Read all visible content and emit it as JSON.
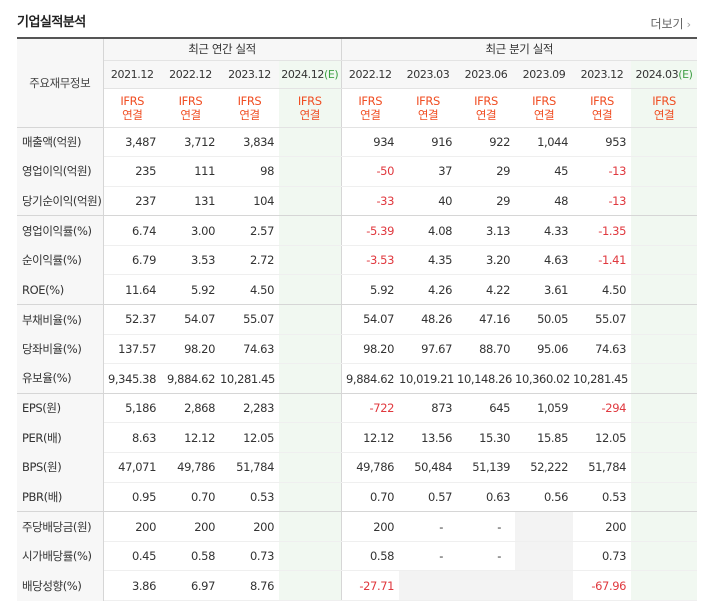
{
  "section_title": "기업실적분석",
  "more_label": "더보기",
  "header": {
    "row_label": "주요재무정보",
    "annual_group": "최근 연간 실적",
    "quarter_group": "최근 분기 실적",
    "annual_periods": [
      "2021.12",
      "2022.12",
      "2023.12",
      "2024.12(E)"
    ],
    "quarter_periods": [
      "2022.12",
      "2023.03",
      "2023.06",
      "2023.09",
      "2023.12",
      "2024.03(E)"
    ],
    "ifrs_line1": "IFRS",
    "ifrs_line2": "연결"
  },
  "rows": [
    {
      "label": "매출액(억원)",
      "annual": [
        "3,487",
        "3,712",
        "3,834",
        ""
      ],
      "quarter": [
        "934",
        "916",
        "922",
        "1,044",
        "953",
        ""
      ]
    },
    {
      "label": "영업이익(억원)",
      "annual": [
        "235",
        "111",
        "98",
        ""
      ],
      "quarter": [
        "-50",
        "37",
        "29",
        "45",
        "-13",
        ""
      ]
    },
    {
      "label": "당기순이익(억원)",
      "annual": [
        "237",
        "131",
        "104",
        ""
      ],
      "quarter": [
        "-33",
        "40",
        "29",
        "48",
        "-13",
        ""
      ]
    },
    {
      "label": "영업이익률(%)",
      "annual": [
        "6.74",
        "3.00",
        "2.57",
        ""
      ],
      "quarter": [
        "-5.39",
        "4.08",
        "3.13",
        "4.33",
        "-1.35",
        ""
      ]
    },
    {
      "label": "순이익률(%)",
      "annual": [
        "6.79",
        "3.53",
        "2.72",
        ""
      ],
      "quarter": [
        "-3.53",
        "4.35",
        "3.20",
        "4.63",
        "-1.41",
        ""
      ]
    },
    {
      "label": "ROE(%)",
      "annual": [
        "11.64",
        "5.92",
        "4.50",
        ""
      ],
      "quarter": [
        "5.92",
        "4.26",
        "4.22",
        "3.61",
        "4.50",
        ""
      ]
    },
    {
      "label": "부채비율(%)",
      "annual": [
        "52.37",
        "54.07",
        "55.07",
        ""
      ],
      "quarter": [
        "54.07",
        "48.26",
        "47.16",
        "50.05",
        "55.07",
        ""
      ]
    },
    {
      "label": "당좌비율(%)",
      "annual": [
        "137.57",
        "98.20",
        "74.63",
        ""
      ],
      "quarter": [
        "98.20",
        "97.67",
        "88.70",
        "95.06",
        "74.63",
        ""
      ]
    },
    {
      "label": "유보율(%)",
      "annual": [
        "9,345.38",
        "9,884.62",
        "10,281.45",
        ""
      ],
      "quarter": [
        "9,884.62",
        "10,019.21",
        "10,148.26",
        "10,360.02",
        "10,281.45",
        ""
      ]
    },
    {
      "label": "EPS(원)",
      "annual": [
        "5,186",
        "2,868",
        "2,283",
        ""
      ],
      "quarter": [
        "-722",
        "873",
        "645",
        "1,059",
        "-294",
        ""
      ]
    },
    {
      "label": "PER(배)",
      "annual": [
        "8.63",
        "12.12",
        "12.05",
        ""
      ],
      "quarter": [
        "12.12",
        "13.56",
        "15.30",
        "15.85",
        "12.05",
        ""
      ]
    },
    {
      "label": "BPS(원)",
      "annual": [
        "47,071",
        "49,786",
        "51,784",
        ""
      ],
      "quarter": [
        "49,786",
        "50,484",
        "51,139",
        "52,222",
        "51,784",
        ""
      ]
    },
    {
      "label": "PBR(배)",
      "annual": [
        "0.95",
        "0.70",
        "0.53",
        ""
      ],
      "quarter": [
        "0.70",
        "0.57",
        "0.63",
        "0.56",
        "0.53",
        ""
      ]
    },
    {
      "label": "주당배당금(원)",
      "annual": [
        "200",
        "200",
        "200",
        ""
      ],
      "quarter": [
        "200",
        "-",
        "-",
        "",
        "200",
        ""
      ]
    },
    {
      "label": "시가배당률(%)",
      "annual": [
        "0.45",
        "0.58",
        "0.73",
        ""
      ],
      "quarter": [
        "0.58",
        "-",
        "-",
        "",
        "0.73",
        ""
      ]
    },
    {
      "label": "배당성향(%)",
      "annual": [
        "3.86",
        "6.97",
        "8.76",
        ""
      ],
      "quarter": [
        "-27.71",
        "",
        "",
        "",
        "-67.96",
        ""
      ]
    }
  ],
  "colors": {
    "negative": "#e0383e",
    "ifrs": "#f04e23",
    "estimate_bg": "#f1f8f1",
    "estimate_text": "#3f9f45"
  }
}
